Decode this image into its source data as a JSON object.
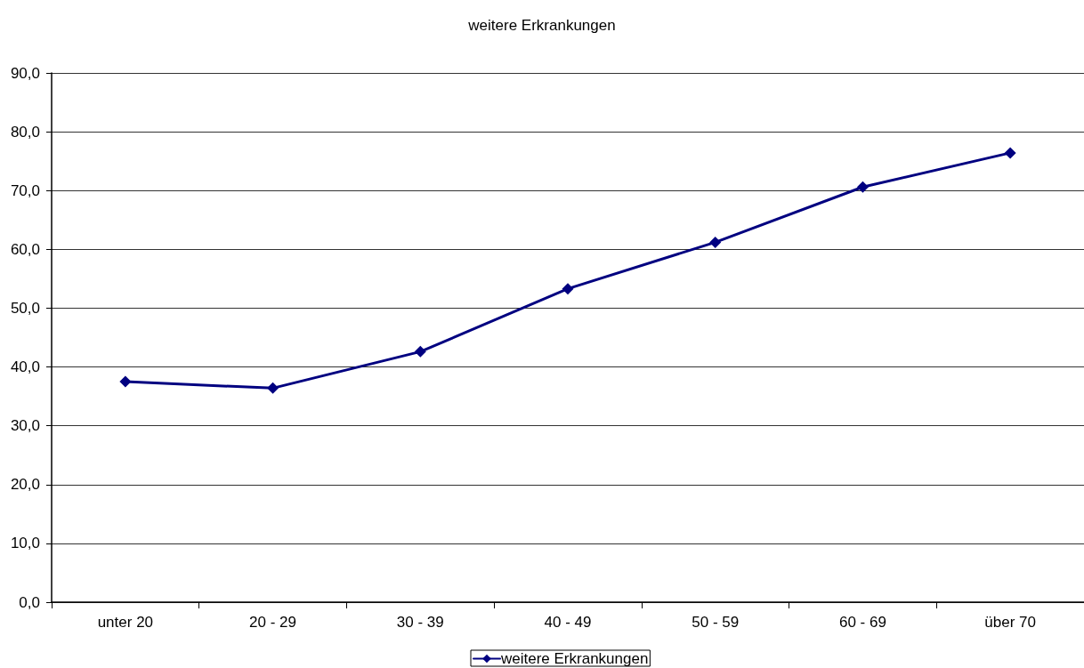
{
  "chart_data": {
    "type": "line",
    "title": "weitere Erkrankungen",
    "categories": [
      "unter 20",
      "20 - 29",
      "30 - 39",
      "40 - 49",
      "50 - 59",
      "60 - 69",
      "über 70"
    ],
    "series": [
      {
        "name": "weitere Erkrankungen",
        "color": "#000080",
        "values": [
          37.5,
          36.4,
          42.6,
          53.3,
          61.2,
          70.6,
          76.4
        ]
      }
    ],
    "ylim": [
      0,
      90
    ],
    "yticks": [
      {
        "value": 0,
        "label": "0,0"
      },
      {
        "value": 10,
        "label": "10,0"
      },
      {
        "value": 20,
        "label": "20,0"
      },
      {
        "value": 30,
        "label": "30,0"
      },
      {
        "value": 40,
        "label": "40,0"
      },
      {
        "value": 50,
        "label": "50,0"
      },
      {
        "value": 60,
        "label": "60,0"
      },
      {
        "value": 70,
        "label": "70,0"
      },
      {
        "value": 80,
        "label": "80,0"
      },
      {
        "value": 90,
        "label": "90,0"
      }
    ],
    "grid": "y",
    "legend": "bottom",
    "marker": "diamond",
    "line_style": "solid"
  }
}
